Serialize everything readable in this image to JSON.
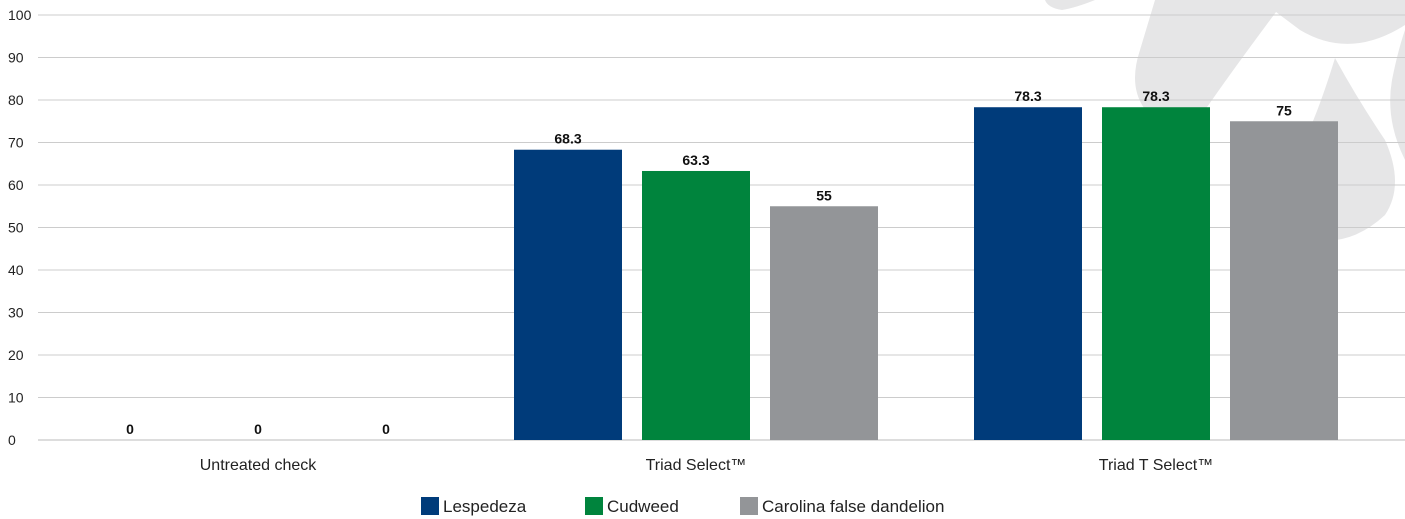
{
  "chart_data": {
    "type": "bar",
    "categories": [
      "Untreated check",
      "Triad Select™",
      "Triad T Select™"
    ],
    "series": [
      {
        "name": "Lespedeza",
        "values": [
          0,
          68.3,
          78.3
        ],
        "color": "#003b7a"
      },
      {
        "name": "Cudweed",
        "values": [
          0,
          63.3,
          78.3
        ],
        "color": "#00843d"
      },
      {
        "name": "Carolina false dandelion",
        "values": [
          0,
          55,
          75
        ],
        "color": "#939598"
      }
    ],
    "title": "",
    "xlabel": "",
    "ylabel": "",
    "ylim": [
      0,
      100
    ],
    "yticks": [
      0,
      10,
      20,
      30,
      40,
      50,
      60,
      70,
      80,
      90,
      100
    ],
    "grid": true,
    "legend_position": "bottom-center",
    "data_labels": true
  }
}
